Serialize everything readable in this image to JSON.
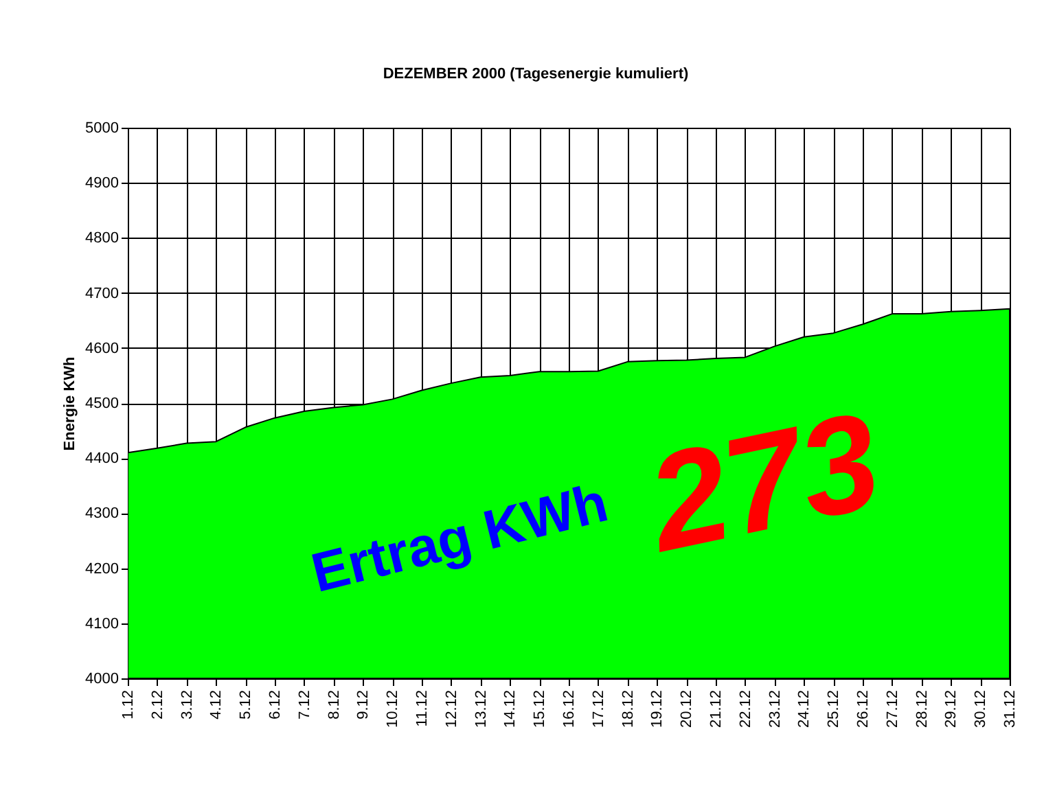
{
  "chart_data": {
    "type": "area",
    "title": "DEZEMBER 2000 (Tagesenergie kumuliert)",
    "ylabel": "Energie KWh",
    "categories": [
      "1.12",
      "2.12",
      "3.12",
      "4.12",
      "5.12",
      "6.12",
      "7.12",
      "8.12",
      "9.12",
      "10.12",
      "11.12",
      "12.12",
      "13.12",
      "14.12",
      "15.12",
      "16.12",
      "17.12",
      "18.12",
      "19.12",
      "20.12",
      "21.12",
      "22.12",
      "23.12",
      "24.12",
      "25.12",
      "26.12",
      "27.12",
      "28.12",
      "29.12",
      "30.12",
      "31.12"
    ],
    "values": [
      4410,
      4418,
      4427,
      4430,
      4456,
      4473,
      4485,
      4492,
      4497,
      4507,
      4523,
      4536,
      4547,
      4550,
      4557,
      4557,
      4558,
      4575,
      4577,
      4578,
      4581,
      4583,
      4603,
      4620,
      4627,
      4643,
      4662,
      4662,
      4666,
      4668,
      4671
    ],
    "color": "#00ff00",
    "ylim": [
      4000,
      5000
    ],
    "yticks": [
      4000,
      4100,
      4200,
      4300,
      4400,
      4500,
      4600,
      4700,
      4800,
      4900,
      5000
    ],
    "grid": true,
    "annotations": [
      "Ertrag KWh",
      "273"
    ]
  }
}
